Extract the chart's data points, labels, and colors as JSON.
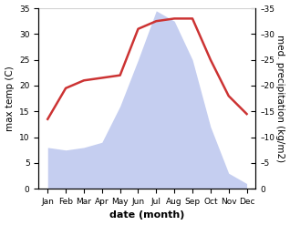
{
  "months": [
    "Jan",
    "Feb",
    "Mar",
    "Apr",
    "May",
    "Jun",
    "Jul",
    "Aug",
    "Sep",
    "Oct",
    "Nov",
    "Dec"
  ],
  "max_temp": [
    13.5,
    19.5,
    21.0,
    21.5,
    22.0,
    31.0,
    32.5,
    33.0,
    33.0,
    25.0,
    18.0,
    14.5
  ],
  "precipitation": [
    8.0,
    7.5,
    8.0,
    9.0,
    16.0,
    25.0,
    34.5,
    32.5,
    25.0,
    12.0,
    3.0,
    1.0
  ],
  "temp_color": "#cc3333",
  "precip_fill_color": "#c5cef0",
  "ylabel_left": "max temp (C)",
  "ylabel_right": "med. precipitation (kg/m2)",
  "xlabel": "date (month)",
  "ylim": [
    0,
    35
  ],
  "yticks": [
    0,
    5,
    10,
    15,
    20,
    25,
    30,
    35
  ],
  "axis_fontsize": 7.5,
  "tick_fontsize": 6.5,
  "xlabel_fontsize": 8,
  "linewidth": 1.8
}
